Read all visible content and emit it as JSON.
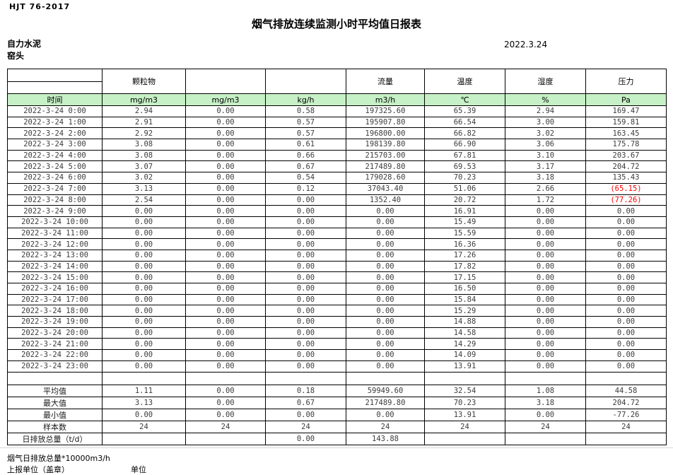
{
  "meta": {
    "standard_code": "HJT  76-2017",
    "title": "烟气排放连续监测小时平均值日报表",
    "company": "自力水泥",
    "station": "窑头",
    "date": "2022.3.24"
  },
  "table": {
    "param_headers": [
      "颗粒物",
      "",
      "",
      "流量",
      "温度",
      "湿度",
      "压力"
    ],
    "unit_row": [
      "时间",
      "mg/m3",
      "mg/m3",
      "kg/h",
      "m3/h",
      "℃",
      "%",
      "Pa"
    ],
    "rows": [
      {
        "time": "2022-3-24 0:00",
        "values": [
          "2.94",
          "0.00",
          "0.58",
          "197325.60",
          "65.39",
          "2.94",
          "169.47"
        ]
      },
      {
        "time": "2022-3-24 1:00",
        "values": [
          "2.91",
          "0.00",
          "0.57",
          "195907.80",
          "66.54",
          "3.00",
          "159.81"
        ]
      },
      {
        "time": "2022-3-24 2:00",
        "values": [
          "2.92",
          "0.00",
          "0.57",
          "196800.00",
          "66.82",
          "3.02",
          "163.45"
        ]
      },
      {
        "time": "2022-3-24 3:00",
        "values": [
          "3.08",
          "0.00",
          "0.61",
          "198139.80",
          "66.90",
          "3.06",
          "175.78"
        ]
      },
      {
        "time": "2022-3-24 4:00",
        "values": [
          "3.08",
          "0.00",
          "0.66",
          "215703.00",
          "67.81",
          "3.10",
          "203.67"
        ]
      },
      {
        "time": "2022-3-24 5:00",
        "values": [
          "3.07",
          "0.00",
          "0.67",
          "217489.80",
          "69.53",
          "3.17",
          "204.72"
        ]
      },
      {
        "time": "2022-3-24 6:00",
        "values": [
          "3.02",
          "0.00",
          "0.54",
          "179028.60",
          "70.23",
          "3.18",
          "135.43"
        ]
      },
      {
        "time": "2022-3-24 7:00",
        "values": [
          "3.13",
          "0.00",
          "0.12",
          "37043.40",
          "51.06",
          "2.66",
          "(65.15)"
        ],
        "red_cols": [
          6
        ]
      },
      {
        "time": "2022-3-24 8:00",
        "values": [
          "2.54",
          "0.00",
          "0.00",
          "1352.40",
          "20.72",
          "1.72",
          "(77.26)"
        ],
        "red_cols": [
          6
        ]
      },
      {
        "time": "2022-3-24 9:00",
        "values": [
          "0.00",
          "0.00",
          "0.00",
          "0.00",
          "16.91",
          "0.00",
          "0.00"
        ]
      },
      {
        "time": "2022-3-24 10:00",
        "values": [
          "0.00",
          "0.00",
          "0.00",
          "0.00",
          "15.49",
          "0.00",
          "0.00"
        ]
      },
      {
        "time": "2022-3-24 11:00",
        "values": [
          "0.00",
          "0.00",
          "0.00",
          "0.00",
          "15.59",
          "0.00",
          "0.00"
        ]
      },
      {
        "time": "2022-3-24 12:00",
        "values": [
          "0.00",
          "0.00",
          "0.00",
          "0.00",
          "16.36",
          "0.00",
          "0.00"
        ]
      },
      {
        "time": "2022-3-24 13:00",
        "values": [
          "0.00",
          "0.00",
          "0.00",
          "0.00",
          "17.26",
          "0.00",
          "0.00"
        ]
      },
      {
        "time": "2022-3-24 14:00",
        "values": [
          "0.00",
          "0.00",
          "0.00",
          "0.00",
          "17.82",
          "0.00",
          "0.00"
        ]
      },
      {
        "time": "2022-3-24 15:00",
        "values": [
          "0.00",
          "0.00",
          "0.00",
          "0.00",
          "17.15",
          "0.00",
          "0.00"
        ]
      },
      {
        "time": "2022-3-24 16:00",
        "values": [
          "0.00",
          "0.00",
          "0.00",
          "0.00",
          "16.50",
          "0.00",
          "0.00"
        ]
      },
      {
        "time": "2022-3-24 17:00",
        "values": [
          "0.00",
          "0.00",
          "0.00",
          "0.00",
          "15.84",
          "0.00",
          "0.00"
        ]
      },
      {
        "time": "2022-3-24 18:00",
        "values": [
          "0.00",
          "0.00",
          "0.00",
          "0.00",
          "15.29",
          "0.00",
          "0.00"
        ]
      },
      {
        "time": "2022-3-24 19:00",
        "values": [
          "0.00",
          "0.00",
          "0.00",
          "0.00",
          "14.88",
          "0.00",
          "0.00"
        ]
      },
      {
        "time": "2022-3-24 20:00",
        "values": [
          "0.00",
          "0.00",
          "0.00",
          "0.00",
          "14.58",
          "0.00",
          "0.00"
        ]
      },
      {
        "time": "2022-3-24 21:00",
        "values": [
          "0.00",
          "0.00",
          "0.00",
          "0.00",
          "14.29",
          "0.00",
          "0.00"
        ]
      },
      {
        "time": "2022-3-24 22:00",
        "values": [
          "0.00",
          "0.00",
          "0.00",
          "0.00",
          "14.09",
          "0.00",
          "0.00"
        ]
      },
      {
        "time": "2022-3-24 23:00",
        "values": [
          "0.00",
          "0.00",
          "0.00",
          "0.00",
          "13.91",
          "0.00",
          "0.00"
        ]
      }
    ],
    "summary": [
      {
        "label": "平均值",
        "values": [
          "1.11",
          "0.00",
          "0.18",
          "59949.60",
          "32.54",
          "1.08",
          "44.58"
        ]
      },
      {
        "label": "最大值",
        "values": [
          "3.13",
          "0.00",
          "0.67",
          "217489.80",
          "70.23",
          "3.18",
          "204.72"
        ]
      },
      {
        "label": "最小值",
        "values": [
          "0.00",
          "0.00",
          "0.00",
          "0.00",
          "13.91",
          "0.00",
          "-77.26"
        ]
      },
      {
        "label": "样本数",
        "values": [
          "24",
          "24",
          "24",
          "24",
          "24",
          "24",
          "24"
        ]
      },
      {
        "label": "日排放总量（t/d）",
        "values": [
          "",
          "",
          "0.00",
          "143.88",
          "",
          "",
          ""
        ]
      }
    ]
  },
  "footer": {
    "note_total": "烟气日排放总量*10000m3/h",
    "note_report_unit": "上报单位（盖章）",
    "note_unit": "单位"
  },
  "colors": {
    "header_green": "#c6f0c6",
    "alert_red": "#ff0000",
    "data_text": "#3c3c3c"
  }
}
